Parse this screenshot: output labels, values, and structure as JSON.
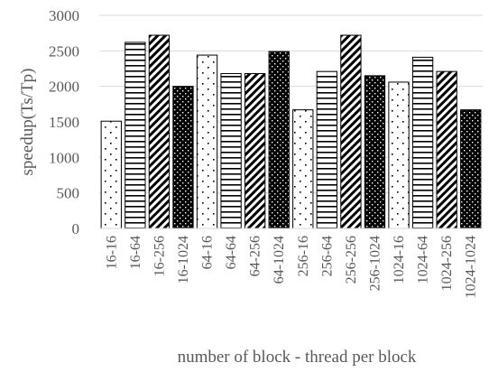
{
  "chart_data": {
    "type": "bar",
    "title": "",
    "xlabel": "number of block - thread per block",
    "ylabel": "speedup(Ts/Tp)",
    "ylim": [
      0,
      3000
    ],
    "yticks": [
      0,
      500,
      1000,
      1500,
      2000,
      2500,
      3000
    ],
    "grid": true,
    "legend": "none",
    "categories": [
      "16-16",
      "16-64",
      "16-256",
      "16-1024",
      "64-16",
      "64-64",
      "64-256",
      "64-1024",
      "256-16",
      "256-64",
      "256-256",
      "256-1024",
      "1024-16",
      "1024-64",
      "1024-256",
      "1024-1024"
    ],
    "values": [
      1510,
      2620,
      2720,
      2000,
      2440,
      2180,
      2180,
      2490,
      1670,
      2210,
      2720,
      2150,
      2060,
      2410,
      2210,
      1670
    ],
    "patterns": [
      "dots-sparse",
      "horizontal-lines",
      "diagonal-stripes",
      "dots-dense",
      "dots-sparse",
      "horizontal-lines",
      "diagonal-stripes",
      "dots-dense",
      "dots-sparse",
      "horizontal-lines",
      "diagonal-stripes",
      "dots-dense",
      "dots-sparse",
      "horizontal-lines",
      "diagonal-stripes",
      "dots-dense"
    ],
    "colors": {
      "bar_stroke": "#000000",
      "grid": "#d9d9d9",
      "text": "#595959"
    }
  }
}
